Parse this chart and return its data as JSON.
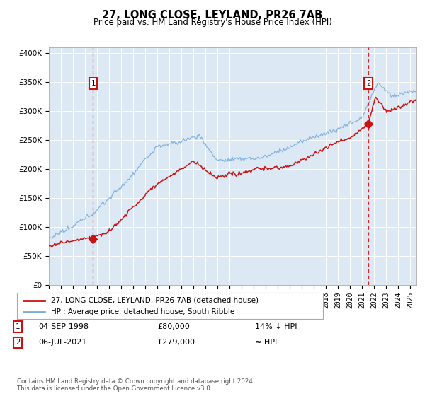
{
  "title": "27, LONG CLOSE, LEYLAND, PR26 7AB",
  "subtitle": "Price paid vs. HM Land Registry's House Price Index (HPI)",
  "background_color": "#ffffff",
  "plot_bg_color": "#dce9f5",
  "ylabel_ticks": [
    "£0",
    "£50K",
    "£100K",
    "£150K",
    "£200K",
    "£250K",
    "£300K",
    "£350K",
    "£400K"
  ],
  "ytick_values": [
    0,
    50000,
    100000,
    150000,
    200000,
    250000,
    300000,
    350000,
    400000
  ],
  "ylim": [
    0,
    410000
  ],
  "hpi_color": "#7aaddb",
  "price_color": "#cc1111",
  "legend_label1": "27, LONG CLOSE, LEYLAND, PR26 7AB (detached house)",
  "legend_label2": "HPI: Average price, detached house, South Ribble",
  "note1_date": "04-SEP-1998",
  "note1_price": "£80,000",
  "note1_rel": "14% ↓ HPI",
  "note2_date": "06-JUL-2021",
  "note2_price": "£279,000",
  "note2_rel": "≈ HPI",
  "footer": "Contains HM Land Registry data © Crown copyright and database right 2024.\nThis data is licensed under the Open Government Licence v3.0."
}
